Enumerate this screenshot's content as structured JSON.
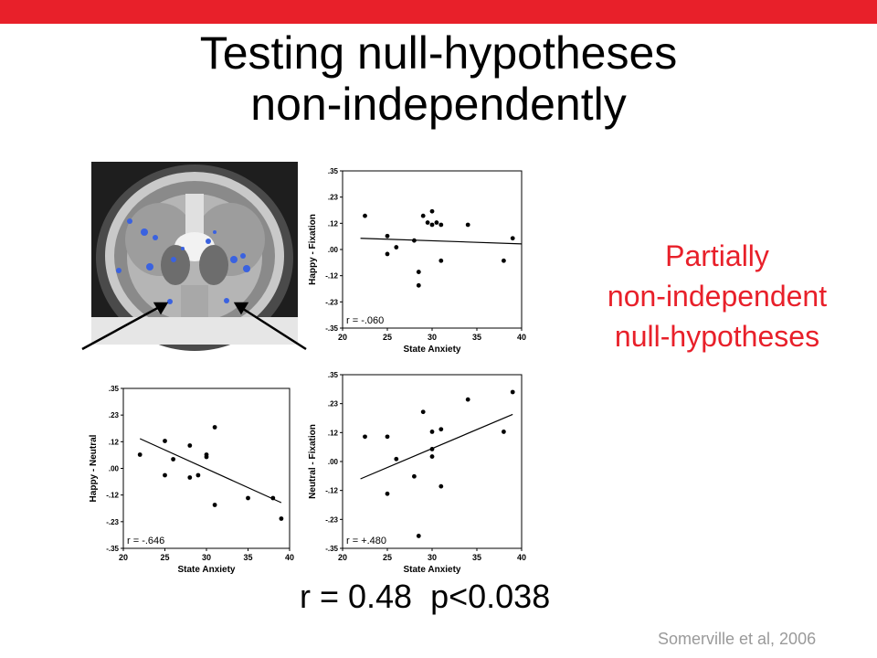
{
  "slide": {
    "accent_color": "#e8202a",
    "title_line1": "Testing null-hypotheses",
    "title_line2": "non-independently",
    "side_note_line1": "Partially",
    "side_note_line2": "non-independent",
    "side_note_line3": "null-hypotheses",
    "stat_text": "r = 0.48  p<0.038",
    "citation": "Somerville et al, 2006"
  },
  "chart_data": [
    {
      "type": "scatter",
      "ylabel": "Happy - Fixation",
      "xlabel": "State Anxiety",
      "annotation": "r = -.060",
      "xlim": [
        20,
        40
      ],
      "ylim": [
        -0.35,
        0.35
      ],
      "xticks": [
        "20",
        "25",
        "30",
        "35",
        "40"
      ],
      "yticks": [
        ".35",
        ".23",
        ".12",
        ".00",
        "-.12",
        "-.23",
        "-.35"
      ],
      "points": [
        [
          22.5,
          0.15
        ],
        [
          25,
          0.06
        ],
        [
          25,
          -0.02
        ],
        [
          26,
          0.01
        ],
        [
          28,
          0.04
        ],
        [
          29,
          0.15
        ],
        [
          29.5,
          0.12
        ],
        [
          30,
          0.17
        ],
        [
          30,
          0.11
        ],
        [
          30.5,
          0.12
        ],
        [
          31,
          0.11
        ],
        [
          31,
          -0.05
        ],
        [
          28.5,
          -0.1
        ],
        [
          28.5,
          -0.16
        ],
        [
          34,
          0.11
        ],
        [
          38,
          -0.05
        ],
        [
          39,
          0.05
        ]
      ],
      "fit": [
        [
          22,
          0.05
        ],
        [
          40,
          0.025
        ]
      ]
    },
    {
      "type": "scatter",
      "ylabel": "Happy - Neutral",
      "xlabel": "State Anxiety",
      "annotation": "r = -.646",
      "xlim": [
        20,
        40
      ],
      "ylim": [
        -0.35,
        0.35
      ],
      "xticks": [
        "20",
        "25",
        "30",
        "35",
        "40"
      ],
      "yticks": [
        ".35",
        ".23",
        ".12",
        ".00",
        "-.12",
        "-.23",
        "-.35"
      ],
      "points": [
        [
          22,
          0.06
        ],
        [
          25,
          0.12
        ],
        [
          25,
          -0.03
        ],
        [
          26,
          0.04
        ],
        [
          28,
          0.1
        ],
        [
          28,
          -0.04
        ],
        [
          29,
          -0.03
        ],
        [
          30,
          0.06
        ],
        [
          30,
          0.05
        ],
        [
          31,
          0.18
        ],
        [
          31,
          -0.16
        ],
        [
          35,
          -0.13
        ],
        [
          38,
          -0.13
        ],
        [
          39,
          -0.22
        ]
      ],
      "fit": [
        [
          22,
          0.13
        ],
        [
          39,
          -0.15
        ]
      ]
    },
    {
      "type": "scatter",
      "ylabel": "Neutral - Fixation",
      "xlabel": "State Anxiety",
      "annotation": "r = +.480",
      "xlim": [
        20,
        40
      ],
      "ylim": [
        -0.35,
        0.35
      ],
      "xticks": [
        "20",
        "25",
        "30",
        "35",
        "40"
      ],
      "yticks": [
        ".35",
        ".23",
        ".12",
        ".00",
        "-.12",
        "-.23",
        "-.35"
      ],
      "points": [
        [
          22.5,
          0.1
        ],
        [
          25,
          0.1
        ],
        [
          25,
          -0.13
        ],
        [
          26,
          0.01
        ],
        [
          28,
          -0.06
        ],
        [
          29,
          0.2
        ],
        [
          30,
          0.12
        ],
        [
          30,
          0.05
        ],
        [
          30,
          0.02
        ],
        [
          31,
          0.13
        ],
        [
          31,
          -0.1
        ],
        [
          28.5,
          -0.3
        ],
        [
          34,
          0.25
        ],
        [
          38,
          0.12
        ],
        [
          39,
          0.28
        ]
      ],
      "fit": [
        [
          22,
          -0.07
        ],
        [
          39,
          0.19
        ]
      ]
    }
  ]
}
